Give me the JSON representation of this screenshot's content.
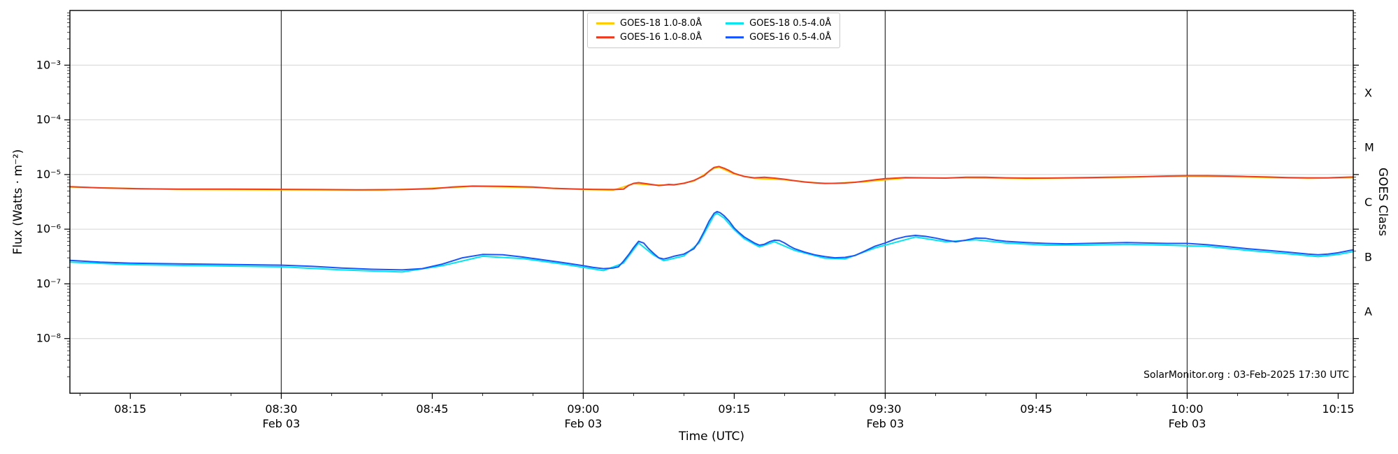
{
  "chart_data": {
    "type": "line",
    "title": "",
    "xlabel": "Time (UTC)",
    "ylabel": "Flux (Watts · m⁻²)",
    "ylabel_right": "GOES Class",
    "watermark": "SolarMonitor.org : 03-Feb-2025 17:30 UTC",
    "x_axis": {
      "unit": "minutes after 08:00 UTC",
      "range": [
        9,
        136.5
      ]
    },
    "y_axis": {
      "scale": "log",
      "unit": "W m^-2",
      "exp_range": [
        -9,
        -2
      ],
      "tick_exponents": [
        -3,
        -4,
        -5,
        -6,
        -7,
        -8
      ],
      "tick_labels": [
        "10⁻³",
        "10⁻⁴",
        "10⁻⁵",
        "10⁻⁶",
        "10⁻⁷",
        "10⁻⁸"
      ]
    },
    "x_ticks": [
      {
        "m": 15,
        "label": "08:15"
      },
      {
        "m": 30,
        "label": "08:30"
      },
      {
        "m": 45,
        "label": "08:45"
      },
      {
        "m": 60,
        "label": "09:00"
      },
      {
        "m": 75,
        "label": "09:15"
      },
      {
        "m": 90,
        "label": "09:30"
      },
      {
        "m": 105,
        "label": "09:45"
      },
      {
        "m": 120,
        "label": "10:00"
      },
      {
        "m": 135,
        "label": "10:15"
      }
    ],
    "x_minor_step": 5,
    "date_lines": [
      {
        "m": 30,
        "label": "Feb 03"
      },
      {
        "m": 60,
        "label": "Feb 03"
      },
      {
        "m": 90,
        "label": "Feb 03"
      },
      {
        "m": 120,
        "label": "Feb 03"
      }
    ],
    "goes_classes": [
      {
        "exp": -3.5,
        "label": "X"
      },
      {
        "exp": -4.5,
        "label": "M"
      },
      {
        "exp": -5.5,
        "label": "C"
      },
      {
        "exp": -6.5,
        "label": "B"
      },
      {
        "exp": -7.5,
        "label": "A"
      }
    ],
    "legend_order": [
      "GOES-18 1.0-8.0Å",
      "GOES-16 1.0-8.0Å",
      "GOES-18 0.5-4.0Å",
      "GOES-16 0.5-4.0Å"
    ],
    "series": [
      {
        "name": "GOES-18 1.0-8.0Å",
        "color": "#ffcc00",
        "points": [
          [
            9,
            5.9e-06
          ],
          [
            20,
            5.3e-06
          ],
          [
            30,
            5.25e-06
          ],
          [
            40,
            5.2e-06
          ],
          [
            47,
            5.8e-06
          ],
          [
            49,
            6.05e-06
          ],
          [
            55,
            5.8e-06
          ],
          [
            60,
            5.3e-06
          ],
          [
            63,
            5.2e-06
          ],
          [
            65,
            6.8e-06
          ],
          [
            67,
            6.4e-06
          ],
          [
            69,
            6.4e-06
          ],
          [
            71,
            7.6e-06
          ],
          [
            73,
            1.3e-05
          ],
          [
            73.5,
            1.36e-05
          ],
          [
            75,
            1.02e-05
          ],
          [
            77,
            8.5e-06
          ],
          [
            80,
            8e-06
          ],
          [
            84,
            6.8e-06
          ],
          [
            88,
            7.4e-06
          ],
          [
            92,
            8.6e-06
          ],
          [
            98,
            8.7e-06
          ],
          [
            104,
            8.4e-06
          ],
          [
            110,
            8.6e-06
          ],
          [
            116,
            9.1e-06
          ],
          [
            120,
            9.3e-06
          ],
          [
            126,
            9e-06
          ],
          [
            132,
            8.5e-06
          ],
          [
            136.5,
            8.8e-06
          ]
        ]
      },
      {
        "name": "GOES-18 0.5-4.0Å",
        "color": "#00e5f0",
        "points": [
          [
            9,
            2.5e-07
          ],
          [
            15,
            2.25e-07
          ],
          [
            22,
            2.15e-07
          ],
          [
            30,
            2.05e-07
          ],
          [
            36,
            1.8e-07
          ],
          [
            42,
            1.65e-07
          ],
          [
            46,
            2.15e-07
          ],
          [
            50,
            3.2e-07
          ],
          [
            54,
            2.9e-07
          ],
          [
            58,
            2.3e-07
          ],
          [
            62,
            1.75e-07
          ],
          [
            64,
            2.4e-07
          ],
          [
            65.5,
            5.6e-07
          ],
          [
            67,
            3.35e-07
          ],
          [
            68,
            2.65e-07
          ],
          [
            70,
            3.25e-07
          ],
          [
            71.5,
            5.6e-07
          ],
          [
            73,
            1.8e-06
          ],
          [
            73.3,
            1.95e-06
          ],
          [
            74,
            1.6e-06
          ],
          [
            75,
            9.8e-07
          ],
          [
            76,
            6.7e-07
          ],
          [
            77.5,
            4.75e-07
          ],
          [
            79,
            5.9e-07
          ],
          [
            81,
            4.1e-07
          ],
          [
            84,
            2.95e-07
          ],
          [
            86,
            2.85e-07
          ],
          [
            89,
            4.55e-07
          ],
          [
            93,
            7.2e-07
          ],
          [
            96,
            5.9e-07
          ],
          [
            99,
            6.4e-07
          ],
          [
            102,
            5.6e-07
          ],
          [
            106,
            5.1e-07
          ],
          [
            110,
            5.1e-07
          ],
          [
            114,
            5.3e-07
          ],
          [
            118,
            5.1e-07
          ],
          [
            122,
            4.85e-07
          ],
          [
            126,
            4.1e-07
          ],
          [
            130,
            3.55e-07
          ],
          [
            133,
            3.15e-07
          ],
          [
            135,
            3.45e-07
          ],
          [
            136.5,
            3.9e-07
          ]
        ]
      },
      {
        "name": "GOES-16 1.0-8.0Å",
        "color": "#ee3d22",
        "points": [
          [
            9,
            6e-06
          ],
          [
            12,
            5.7e-06
          ],
          [
            16,
            5.5e-06
          ],
          [
            20,
            5.4e-06
          ],
          [
            25,
            5.4e-06
          ],
          [
            30,
            5.35e-06
          ],
          [
            34,
            5.3e-06
          ],
          [
            38,
            5.25e-06
          ],
          [
            42,
            5.3e-06
          ],
          [
            45,
            5.5e-06
          ],
          [
            47,
            5.9e-06
          ],
          [
            49,
            6.15e-06
          ],
          [
            52,
            6.1e-06
          ],
          [
            55,
            5.9e-06
          ],
          [
            57,
            5.6e-06
          ],
          [
            59,
            5.45e-06
          ],
          [
            61,
            5.35e-06
          ],
          [
            63,
            5.3e-06
          ],
          [
            64,
            5.4e-06
          ],
          [
            64.5,
            6.3e-06
          ],
          [
            65,
            6.9e-06
          ],
          [
            65.5,
            7.1e-06
          ],
          [
            66,
            6.9e-06
          ],
          [
            67,
            6.5e-06
          ],
          [
            67.5,
            6.3e-06
          ],
          [
            68,
            6.4e-06
          ],
          [
            68.5,
            6.6e-06
          ],
          [
            69,
            6.5e-06
          ],
          [
            70,
            6.9e-06
          ],
          [
            71,
            7.8e-06
          ],
          [
            72,
            9.5e-06
          ],
          [
            72.5,
            1.15e-05
          ],
          [
            73,
            1.35e-05
          ],
          [
            73.5,
            1.4e-05
          ],
          [
            74,
            1.3e-05
          ],
          [
            74.5,
            1.18e-05
          ],
          [
            75,
            1.05e-05
          ],
          [
            76,
            9.2e-06
          ],
          [
            77,
            8.7e-06
          ],
          [
            78,
            8.9e-06
          ],
          [
            79,
            8.6e-06
          ],
          [
            80,
            8.2e-06
          ],
          [
            81,
            7.7e-06
          ],
          [
            82,
            7.3e-06
          ],
          [
            83,
            7.05e-06
          ],
          [
            84,
            6.9e-06
          ],
          [
            85,
            6.9e-06
          ],
          [
            86,
            7e-06
          ],
          [
            87,
            7.2e-06
          ],
          [
            88,
            7.6e-06
          ],
          [
            89,
            8e-06
          ],
          [
            90,
            8.4e-06
          ],
          [
            91,
            8.6e-06
          ],
          [
            92,
            8.8e-06
          ],
          [
            94,
            8.7e-06
          ],
          [
            96,
            8.6e-06
          ],
          [
            98,
            8.9e-06
          ],
          [
            100,
            8.9e-06
          ],
          [
            102,
            8.7e-06
          ],
          [
            104,
            8.6e-06
          ],
          [
            106,
            8.6e-06
          ],
          [
            108,
            8.7e-06
          ],
          [
            110,
            8.8e-06
          ],
          [
            112,
            8.9e-06
          ],
          [
            115,
            9.1e-06
          ],
          [
            118,
            9.4e-06
          ],
          [
            120,
            9.5e-06
          ],
          [
            122,
            9.5e-06
          ],
          [
            124,
            9.4e-06
          ],
          [
            126,
            9.2e-06
          ],
          [
            128,
            9e-06
          ],
          [
            130,
            8.8e-06
          ],
          [
            132,
            8.7e-06
          ],
          [
            134,
            8.7e-06
          ],
          [
            136.5,
            9e-06
          ]
        ]
      },
      {
        "name": "GOES-16 0.5-4.0Å",
        "color": "#1a56ff",
        "points": [
          [
            9,
            2.7e-07
          ],
          [
            12,
            2.5e-07
          ],
          [
            15,
            2.4e-07
          ],
          [
            18,
            2.35e-07
          ],
          [
            22,
            2.3e-07
          ],
          [
            26,
            2.25e-07
          ],
          [
            30,
            2.2e-07
          ],
          [
            33,
            2.1e-07
          ],
          [
            36,
            1.95e-07
          ],
          [
            39,
            1.85e-07
          ],
          [
            42,
            1.8e-07
          ],
          [
            44,
            1.9e-07
          ],
          [
            46,
            2.3e-07
          ],
          [
            48,
            3e-07
          ],
          [
            50,
            3.45e-07
          ],
          [
            52,
            3.4e-07
          ],
          [
            54,
            3.1e-07
          ],
          [
            56,
            2.75e-07
          ],
          [
            58,
            2.45e-07
          ],
          [
            60,
            2.15e-07
          ],
          [
            61,
            2e-07
          ],
          [
            62,
            1.9e-07
          ],
          [
            63,
            1.95e-07
          ],
          [
            63.5,
            2.05e-07
          ],
          [
            64,
            2.6e-07
          ],
          [
            64.5,
            3.4e-07
          ],
          [
            65,
            4.6e-07
          ],
          [
            65.5,
            6e-07
          ],
          [
            66,
            5.6e-07
          ],
          [
            66.5,
            4.4e-07
          ],
          [
            67,
            3.6e-07
          ],
          [
            67.5,
            3e-07
          ],
          [
            68,
            2.85e-07
          ],
          [
            68.5,
            3e-07
          ],
          [
            69,
            3.2e-07
          ],
          [
            70,
            3.5e-07
          ],
          [
            71,
            4.4e-07
          ],
          [
            71.5,
            6e-07
          ],
          [
            72,
            9e-07
          ],
          [
            72.5,
            1.4e-06
          ],
          [
            73,
            1.95e-06
          ],
          [
            73.3,
            2.1e-06
          ],
          [
            73.6,
            2e-06
          ],
          [
            74,
            1.75e-06
          ],
          [
            74.5,
            1.4e-06
          ],
          [
            75,
            1.05e-06
          ],
          [
            75.5,
            8.6e-07
          ],
          [
            76,
            7.2e-07
          ],
          [
            77,
            5.6e-07
          ],
          [
            77.5,
            5.1e-07
          ],
          [
            78,
            5.3e-07
          ],
          [
            78.5,
            5.9e-07
          ],
          [
            79,
            6.3e-07
          ],
          [
            79.5,
            6.2e-07
          ],
          [
            80,
            5.6e-07
          ],
          [
            80.5,
            4.9e-07
          ],
          [
            81,
            4.4e-07
          ],
          [
            82,
            3.8e-07
          ],
          [
            83,
            3.4e-07
          ],
          [
            84,
            3.15e-07
          ],
          [
            85,
            3e-07
          ],
          [
            86,
            3.05e-07
          ],
          [
            87,
            3.3e-07
          ],
          [
            88,
            4e-07
          ],
          [
            89,
            4.9e-07
          ],
          [
            90,
            5.6e-07
          ],
          [
            91,
            6.6e-07
          ],
          [
            92,
            7.3e-07
          ],
          [
            93,
            7.7e-07
          ],
          [
            94,
            7.4e-07
          ],
          [
            95,
            6.9e-07
          ],
          [
            96,
            6.3e-07
          ],
          [
            97,
            5.9e-07
          ],
          [
            98,
            6.3e-07
          ],
          [
            99,
            6.9e-07
          ],
          [
            100,
            6.8e-07
          ],
          [
            101,
            6.3e-07
          ],
          [
            102,
            6e-07
          ],
          [
            104,
            5.7e-07
          ],
          [
            106,
            5.5e-07
          ],
          [
            108,
            5.4e-07
          ],
          [
            110,
            5.5e-07
          ],
          [
            112,
            5.6e-07
          ],
          [
            114,
            5.7e-07
          ],
          [
            116,
            5.6e-07
          ],
          [
            118,
            5.5e-07
          ],
          [
            120,
            5.5e-07
          ],
          [
            122,
            5.2e-07
          ],
          [
            124,
            4.8e-07
          ],
          [
            126,
            4.4e-07
          ],
          [
            128,
            4.1e-07
          ],
          [
            130,
            3.8e-07
          ],
          [
            132,
            3.5e-07
          ],
          [
            133,
            3.4e-07
          ],
          [
            134,
            3.5e-07
          ],
          [
            135,
            3.7e-07
          ],
          [
            136.5,
            4.2e-07
          ]
        ]
      }
    ]
  },
  "colors": {
    "background": "#ffffff",
    "grid": "#d4d4d4",
    "frame": "#000000",
    "date_line": "#3a3a3a",
    "tick": "#000000"
  }
}
